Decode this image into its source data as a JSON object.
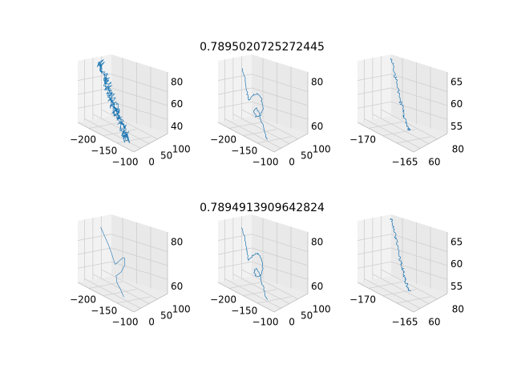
{
  "figure": {
    "row_titles": [
      "0.7895020725272445",
      "0.7894913909642824"
    ],
    "line_color": "#1f77b4",
    "pane_color": "#f2f2f2",
    "grid_color": "#cfcfcf"
  },
  "chart_data": [
    {
      "type": "line",
      "row": 0,
      "col": 0,
      "style": "noisy",
      "x_ticks": [
        "−200",
        "−150",
        "−100"
      ],
      "y_ticks": [
        "0",
        "50",
        "100"
      ],
      "z_ticks": [
        "40",
        "60",
        "80"
      ],
      "xlim": [
        -230,
        -90
      ],
      "ylim": [
        -10,
        120
      ],
      "zlim": [
        35,
        90
      ],
      "points": [
        [
          -220,
          60,
          82
        ],
        [
          -212,
          55,
          80
        ],
        [
          -205,
          50,
          76
        ],
        [
          -198,
          48,
          72
        ],
        [
          -192,
          44,
          70
        ],
        [
          -185,
          40,
          67
        ],
        [
          -178,
          35,
          64
        ],
        [
          -170,
          30,
          60
        ],
        [
          -162,
          26,
          57
        ],
        [
          -155,
          22,
          55
        ],
        [
          -147,
          18,
          52
        ],
        [
          -140,
          14,
          50
        ],
        [
          -132,
          10,
          47
        ],
        [
          -125,
          6,
          44
        ],
        [
          -118,
          3,
          42
        ],
        [
          -112,
          0,
          40
        ]
      ]
    },
    {
      "type": "line",
      "row": 0,
      "col": 1,
      "style": "loop",
      "x_ticks": [
        "−200",
        "−150",
        "−100"
      ],
      "y_ticks": [
        "0",
        "50",
        "100"
      ],
      "z_ticks": [
        "60",
        "80"
      ],
      "xlim": [
        -230,
        -90
      ],
      "ylim": [
        -10,
        120
      ],
      "zlim": [
        45,
        90
      ],
      "points": [
        [
          -215,
          60,
          80
        ],
        [
          -205,
          55,
          74
        ],
        [
          -198,
          50,
          68
        ],
        [
          -192,
          46,
          64
        ],
        [
          -188,
          44,
          62
        ],
        [
          -180,
          40,
          66
        ],
        [
          -170,
          38,
          70
        ],
        [
          -160,
          36,
          72
        ],
        [
          -150,
          34,
          70
        ],
        [
          -145,
          32,
          64
        ],
        [
          -150,
          30,
          58
        ],
        [
          -160,
          28,
          56
        ],
        [
          -162,
          24,
          60
        ],
        [
          -155,
          20,
          64
        ],
        [
          -145,
          18,
          62
        ],
        [
          -135,
          14,
          56
        ],
        [
          -125,
          10,
          50
        ],
        [
          -118,
          6,
          48
        ]
      ]
    },
    {
      "type": "line",
      "row": 0,
      "col": 2,
      "style": "dense",
      "x_ticks": [
        "−170",
        "−165"
      ],
      "y_ticks": [
        "60",
        "80"
      ],
      "z_ticks": [
        "55",
        "60",
        "65"
      ],
      "xlim": [
        -175,
        -160
      ],
      "ylim": [
        50,
        95
      ],
      "zlim": [
        52,
        68
      ],
      "points": [
        [
          -173,
          85,
          66
        ],
        [
          -172,
          83,
          65
        ],
        [
          -171,
          80,
          63
        ],
        [
          -170,
          78,
          62
        ],
        [
          -169,
          75,
          60
        ],
        [
          -168,
          72,
          59
        ],
        [
          -167,
          70,
          58
        ],
        [
          -166,
          67,
          57
        ],
        [
          -165,
          64,
          56
        ],
        [
          -164,
          62,
          55
        ],
        [
          -163,
          60,
          55
        ]
      ]
    },
    {
      "type": "line",
      "row": 1,
      "col": 0,
      "style": "smooth",
      "x_ticks": [
        "−200",
        "−150",
        "−100"
      ],
      "y_ticks": [
        "0",
        "50",
        "100"
      ],
      "z_ticks": [
        "60",
        "80"
      ],
      "xlim": [
        -230,
        -90
      ],
      "ylim": [
        -10,
        120
      ],
      "zlim": [
        45,
        90
      ],
      "points": [
        [
          -218,
          60,
          80
        ],
        [
          -205,
          55,
          76
        ],
        [
          -192,
          50,
          72
        ],
        [
          -182,
          46,
          68
        ],
        [
          -175,
          44,
          64
        ],
        [
          -170,
          42,
          62
        ],
        [
          -160,
          40,
          66
        ],
        [
          -150,
          38,
          70
        ],
        [
          -142,
          34,
          72
        ],
        [
          -138,
          30,
          68
        ],
        [
          -145,
          26,
          62
        ],
        [
          -155,
          22,
          58
        ],
        [
          -150,
          18,
          54
        ],
        [
          -140,
          14,
          52
        ],
        [
          -128,
          10,
          48
        ]
      ]
    },
    {
      "type": "line",
      "row": 1,
      "col": 1,
      "style": "loop",
      "x_ticks": [
        "−200",
        "−150",
        "−100"
      ],
      "y_ticks": [
        "0",
        "50",
        "100"
      ],
      "z_ticks": [
        "60",
        "80"
      ],
      "xlim": [
        -230,
        -90
      ],
      "ylim": [
        -10,
        120
      ],
      "zlim": [
        45,
        90
      ],
      "points": [
        [
          -215,
          60,
          80
        ],
        [
          -205,
          55,
          74
        ],
        [
          -198,
          50,
          68
        ],
        [
          -192,
          46,
          64
        ],
        [
          -188,
          44,
          62
        ],
        [
          -180,
          40,
          66
        ],
        [
          -170,
          38,
          70
        ],
        [
          -160,
          36,
          72
        ],
        [
          -150,
          34,
          70
        ],
        [
          -145,
          32,
          64
        ],
        [
          -150,
          30,
          58
        ],
        [
          -160,
          28,
          56
        ],
        [
          -162,
          24,
          60
        ],
        [
          -155,
          20,
          64
        ],
        [
          -145,
          18,
          62
        ],
        [
          -135,
          14,
          56
        ],
        [
          -125,
          10,
          50
        ],
        [
          -118,
          6,
          48
        ]
      ]
    },
    {
      "type": "line",
      "row": 1,
      "col": 2,
      "style": "dense",
      "x_ticks": [
        "−170",
        "−165"
      ],
      "y_ticks": [
        "60",
        "80"
      ],
      "z_ticks": [
        "55",
        "60",
        "65"
      ],
      "xlim": [
        -175,
        -160
      ],
      "ylim": [
        50,
        95
      ],
      "zlim": [
        52,
        68
      ],
      "points": [
        [
          -173,
          85,
          66
        ],
        [
          -172,
          83,
          65
        ],
        [
          -171,
          80,
          63
        ],
        [
          -170,
          78,
          62
        ],
        [
          -169,
          75,
          60
        ],
        [
          -168,
          72,
          59
        ],
        [
          -167,
          70,
          58
        ],
        [
          -166,
          67,
          57
        ],
        [
          -165,
          64,
          56
        ],
        [
          -164,
          62,
          55
        ],
        [
          -163,
          60,
          55
        ]
      ]
    }
  ]
}
